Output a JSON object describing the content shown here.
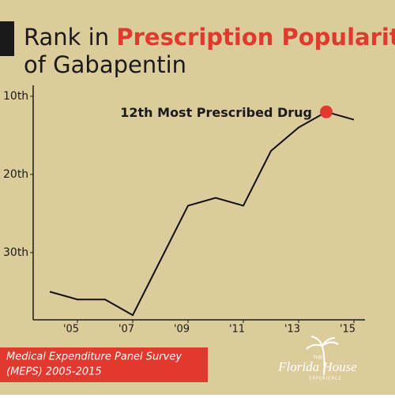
{
  "chart_data": {
    "type": "line",
    "title": {
      "line1_plain": "Rank in ",
      "line1_highlight": "Prescription Popularity",
      "line2": "of Gabapentin"
    },
    "x": [
      2004,
      2005,
      2006,
      2007,
      2008,
      2009,
      2010,
      2011,
      2012,
      2013,
      2014,
      2015
    ],
    "series": [
      {
        "name": "Gabapentin",
        "color": "#111111",
        "values": [
          35,
          36,
          36,
          38,
          31,
          24,
          23,
          24,
          17,
          14,
          12,
          13
        ]
      }
    ],
    "xlim": [
      2003.4,
      2015.4
    ],
    "xticks": [
      {
        "value": 2005,
        "label": "'05"
      },
      {
        "value": 2007,
        "label": "'07"
      },
      {
        "value": 2009,
        "label": "'09"
      },
      {
        "value": 2011,
        "label": "'11"
      },
      {
        "value": 2013,
        "label": "'13"
      },
      {
        "value": 2015,
        "label": "'15"
      }
    ],
    "ylim": [
      38.6,
      8.6
    ],
    "yticks": [
      {
        "value": 10,
        "label": "10th"
      },
      {
        "value": 20,
        "label": "20th"
      },
      {
        "value": 30,
        "label": "30th"
      }
    ],
    "highlight_index": 10,
    "highlight_color": "#e0392d",
    "annotation": "12th Most Prescribed Drug",
    "source": [
      "Medical Expenditure Panel Survey",
      "(MEPS) 2005-2015"
    ],
    "logo": {
      "top": "THE",
      "main": "Florida House",
      "bottom": "EXPERIENCE"
    }
  }
}
